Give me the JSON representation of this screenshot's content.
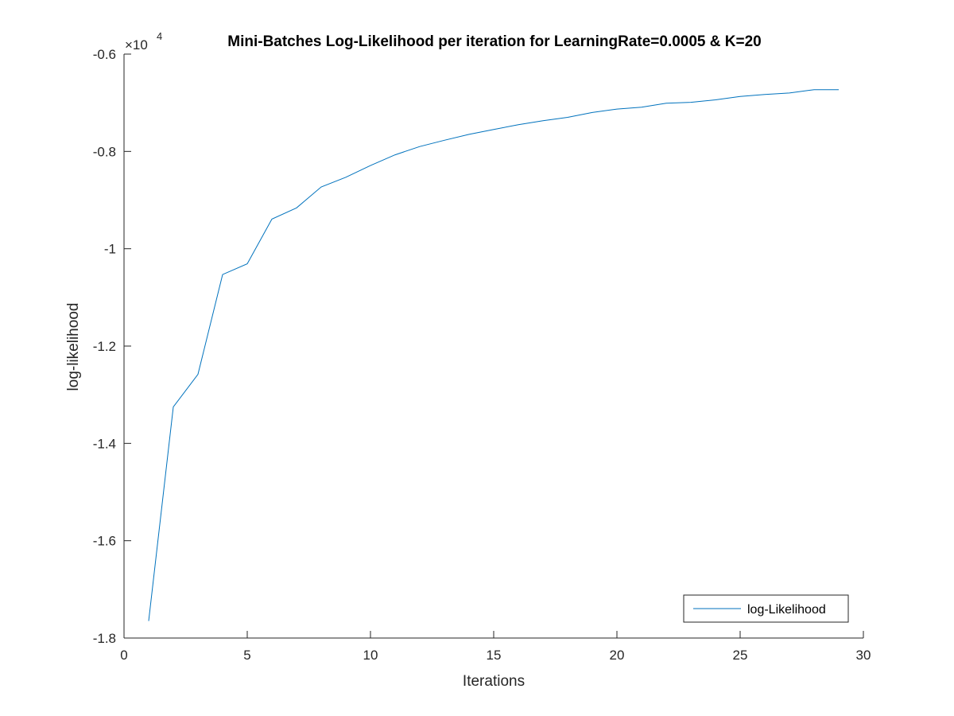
{
  "chart_data": {
    "type": "line",
    "title": "Mini-Batches Log-Likelihood per iteration for LearningRate=0.0005 & K=20",
    "xlabel": "Iterations",
    "ylabel": "log-likelihood",
    "y_exponent_base": "×10",
    "y_exponent_power": "4",
    "xlim": [
      0,
      30
    ],
    "ylim": [
      -1.8,
      -0.6
    ],
    "xticks": [
      0,
      5,
      10,
      15,
      20,
      25,
      30
    ],
    "xtick_labels": [
      "0",
      "5",
      "10",
      "15",
      "20",
      "25",
      "30"
    ],
    "yticks": [
      -1.8,
      -1.6,
      -1.4,
      -1.2,
      -1.0,
      -0.8,
      -0.6
    ],
    "ytick_labels": [
      "-1.8",
      "-1.6",
      "-1.4",
      "-1.2",
      "-1",
      "-0.8",
      "-0.6"
    ],
    "grid": false,
    "legend_position": "bottom-right",
    "series_color": "#0072BD",
    "series": [
      {
        "name": "log-Likelihood",
        "x": [
          1,
          2,
          3,
          4,
          5,
          6,
          7,
          8,
          9,
          10,
          11,
          12,
          13,
          14,
          15,
          16,
          17,
          18,
          19,
          20,
          21,
          22,
          23,
          24,
          25,
          26,
          27,
          28,
          29
        ],
        "y": [
          -1.765,
          -1.325,
          -1.258,
          -1.053,
          -1.031,
          -0.939,
          -0.916,
          -0.873,
          -0.853,
          -0.829,
          -0.807,
          -0.79,
          -0.777,
          -0.765,
          -0.755,
          -0.745,
          -0.737,
          -0.73,
          -0.72,
          -0.713,
          -0.709,
          -0.701,
          -0.699,
          -0.694,
          -0.687,
          -0.683,
          -0.68,
          -0.673,
          -0.673
        ]
      }
    ]
  }
}
